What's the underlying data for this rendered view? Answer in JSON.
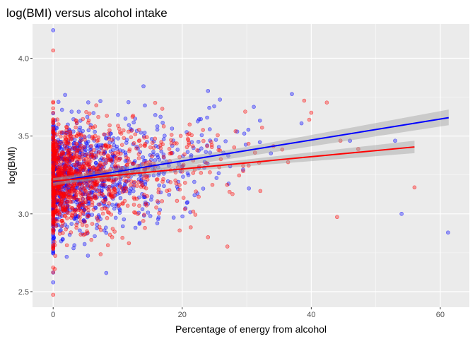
{
  "chart_data": {
    "type": "scatter",
    "title": "log(BMI) versus alcohol intake",
    "xlabel": "Percentage of energy from alcohol",
    "ylabel": "log(BMI)",
    "xlim": [
      -3.2,
      64.5
    ],
    "ylim": [
      2.4,
      4.22
    ],
    "x_ticks": [
      0,
      20,
      40,
      60
    ],
    "y_ticks": [
      2.5,
      3.0,
      3.5,
      4.0
    ],
    "x_tick_labels": [
      "0",
      "20",
      "40",
      "60"
    ],
    "y_tick_labels": [
      "2.5",
      "3.0",
      "3.5",
      "4.0"
    ],
    "grid": true,
    "legend": "none",
    "series": [
      {
        "color": "#0000ff",
        "fit": {
          "x": [
            0,
            61.3
          ],
          "y": [
            3.205,
            3.618
          ],
          "se_band": [
            [
              0,
              3.18,
              3.23
            ],
            [
              30,
              3.37,
              3.43
            ],
            [
              61.3,
              3.57,
              3.67
            ]
          ]
        },
        "x_range": [
          0,
          61.3
        ],
        "sample_points": [
          [
            0,
            4.18
          ],
          [
            0,
            2.56
          ],
          [
            61.2,
            2.88
          ],
          [
            54,
            3.0
          ],
          [
            53,
            3.47
          ],
          [
            46,
            3.47
          ],
          [
            37,
            3.77
          ],
          [
            24,
            3.79
          ],
          [
            14,
            3.82
          ]
        ]
      },
      {
        "color": "#ff0000",
        "fit": {
          "x": [
            0,
            56
          ],
          "y": [
            3.21,
            3.43
          ],
          "se_band": [
            [
              0,
              3.19,
              3.23
            ],
            [
              28,
              3.3,
              3.34
            ],
            [
              56,
              3.39,
              3.47
            ]
          ]
        },
        "x_range": [
          0,
          56
        ],
        "sample_points": [
          [
            0,
            4.05
          ],
          [
            0,
            2.48
          ],
          [
            56,
            3.17
          ],
          [
            44,
            2.98
          ],
          [
            40,
            3.65
          ],
          [
            27,
            2.79
          ],
          [
            24,
            2.85
          ]
        ]
      }
    ]
  }
}
